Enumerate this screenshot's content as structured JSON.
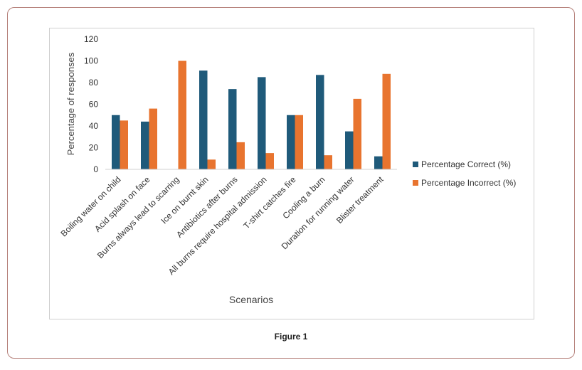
{
  "caption": "Figure 1",
  "chart_data": {
    "type": "bar",
    "xlabel": "Scenarios",
    "ylabel": "Percentage of responses",
    "ylim": [
      0,
      120
    ],
    "yticks": [
      0,
      20,
      40,
      60,
      80,
      100,
      120
    ],
    "grid": false,
    "legend_position": "right",
    "categories": [
      "Boiling water on child",
      "Acid splash on face",
      "Burns always lead to scarring",
      "Ice on burnt skin",
      "Antibiotics after burns",
      "All burns require hospital admission",
      "T-shirt catches fire",
      "Cooling a burn",
      "Duration for running water",
      "Blister treatment"
    ],
    "series": [
      {
        "name": "Percentage Correct (%)",
        "color": "#1f5a7a",
        "values": [
          50,
          44,
          0,
          91,
          74,
          85,
          50,
          87,
          35,
          12
        ]
      },
      {
        "name": "Percentage Incorrect (%)",
        "color": "#e8742f",
        "values": [
          45,
          56,
          100,
          9,
          25,
          15,
          50,
          13,
          65,
          88
        ]
      }
    ]
  }
}
